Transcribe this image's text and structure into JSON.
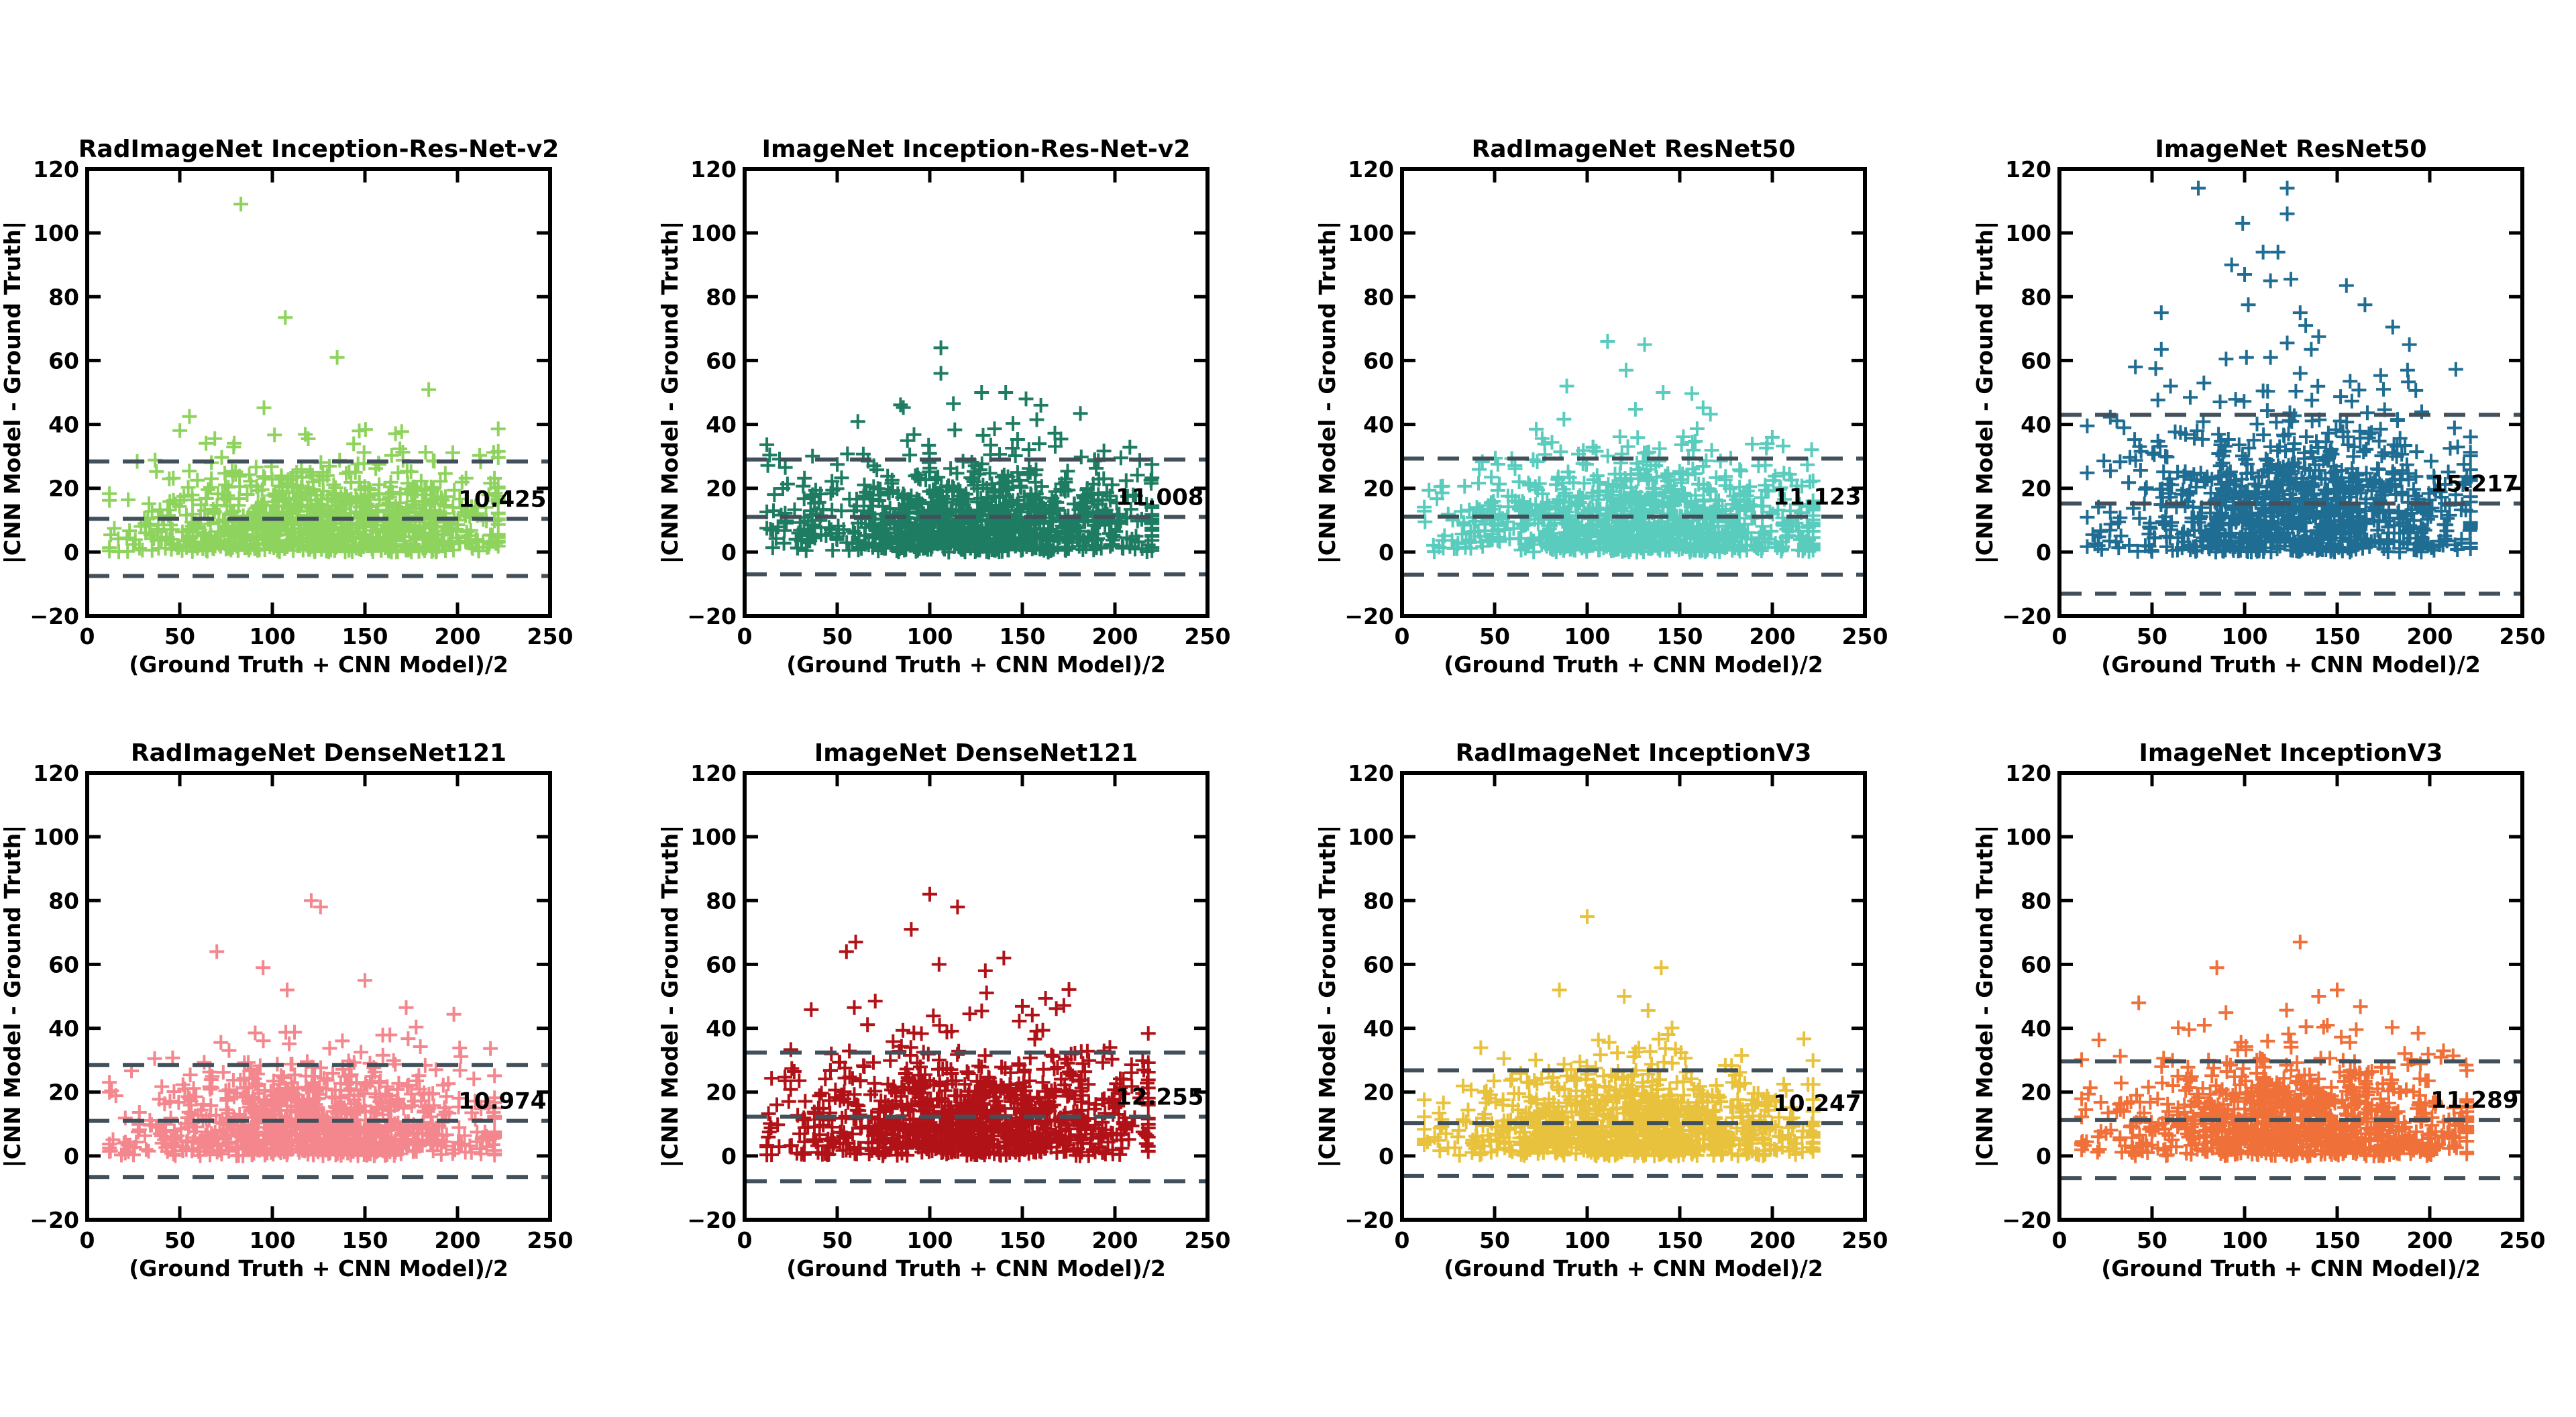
{
  "figure": {
    "background": "#ffffff",
    "xlabel": "(Ground Truth + CNN Model)/2",
    "ylabel": "|CNN Model - Ground Truth|",
    "x_ticks": [
      0,
      50,
      100,
      150,
      200,
      250
    ],
    "y_ticks": [
      -20,
      0,
      20,
      40,
      60,
      80,
      100,
      120
    ],
    "x_range": [
      0,
      250
    ],
    "y_range": [
      -20,
      120
    ],
    "spine_color": "#000000",
    "dashed_line_color": "#41505a",
    "text_color": "#000000",
    "marker": {
      "shape": "plus",
      "half_size": 11,
      "stroke_width": 4
    }
  },
  "chart_data": [
    {
      "type": "scatter",
      "title": "RadImageNet Inception-Res-Net-v2",
      "color": "#8fd35f",
      "mean": 10.425,
      "mean_label": "10.425",
      "loa_upper": 28.4,
      "loa_lower": -7.5,
      "n_points": 950,
      "seed": 11,
      "sigma": 12.3,
      "y_clamp": 52,
      "x_mean": 128,
      "x_sd": 47,
      "x_min": 12,
      "x_max": 222,
      "uniform_frac": 0.12,
      "outliers": [
        [
          83,
          109
        ],
        [
          107,
          73.5
        ],
        [
          135,
          61
        ]
      ]
    },
    {
      "type": "scatter",
      "title": "ImageNet Inception-Res-Net-v2",
      "color": "#1e7c62",
      "mean": 11.008,
      "mean_label": "11.008",
      "loa_upper": 29.0,
      "loa_lower": -7.0,
      "n_points": 950,
      "seed": 22,
      "sigma": 13.0,
      "y_clamp": 52,
      "x_mean": 128,
      "x_sd": 46,
      "x_min": 12,
      "x_max": 220,
      "uniform_frac": 0.12,
      "outliers": [
        [
          106,
          64
        ],
        [
          106,
          56
        ],
        [
          128,
          50
        ],
        [
          141,
          50
        ],
        [
          152,
          48
        ],
        [
          160,
          46
        ]
      ]
    },
    {
      "type": "scatter",
      "title": "RadImageNet ResNet50",
      "color": "#5accbe",
      "mean": 11.123,
      "mean_label": "11.123",
      "loa_upper": 29.3,
      "loa_lower": -7.1,
      "n_points": 950,
      "seed": 33,
      "sigma": 13.1,
      "y_clamp": 52,
      "x_mean": 128,
      "x_sd": 46,
      "x_min": 12,
      "x_max": 222,
      "uniform_frac": 0.12,
      "outliers": [
        [
          111,
          66
        ],
        [
          131,
          65
        ],
        [
          121,
          57
        ],
        [
          89,
          52
        ],
        [
          141,
          50
        ]
      ]
    },
    {
      "type": "scatter",
      "title": "ImageNet ResNet50",
      "color": "#1f6d92",
      "mean": 15.217,
      "mean_label": "15.217",
      "loa_upper": 43.0,
      "loa_lower": -13.0,
      "n_points": 950,
      "seed": 44,
      "sigma": 18.0,
      "y_clamp": 58,
      "x_mean": 130,
      "x_sd": 46,
      "x_min": 15,
      "x_max": 222,
      "uniform_frac": 0.12,
      "outliers": [
        [
          75,
          114
        ],
        [
          123,
          114
        ],
        [
          123,
          106
        ],
        [
          99,
          103
        ],
        [
          110,
          94
        ],
        [
          118,
          94
        ],
        [
          93,
          90
        ],
        [
          100,
          87
        ],
        [
          125,
          85.5
        ],
        [
          114,
          85
        ],
        [
          155,
          83.5
        ],
        [
          102,
          77.5
        ],
        [
          165,
          77.5
        ],
        [
          55,
          75
        ],
        [
          130,
          75
        ],
        [
          133,
          71
        ],
        [
          180,
          70.5
        ],
        [
          140,
          67.5
        ],
        [
          123,
          65.5
        ],
        [
          189,
          65
        ],
        [
          55,
          63.5
        ],
        [
          136,
          63.5
        ],
        [
          114,
          61
        ],
        [
          101,
          61
        ],
        [
          90,
          60.5
        ],
        [
          41,
          58
        ],
        [
          52,
          57.5
        ],
        [
          188,
          57
        ],
        [
          130,
          56
        ],
        [
          157,
          53.5
        ],
        [
          78,
          53
        ],
        [
          60,
          52
        ],
        [
          175,
          51
        ],
        [
          110,
          50.5
        ]
      ]
    },
    {
      "type": "scatter",
      "title": "RadImageNet DenseNet121",
      "color": "#f4878d",
      "mean": 10.974,
      "mean_label": "10.974",
      "loa_upper": 28.5,
      "loa_lower": -6.6,
      "n_points": 950,
      "seed": 55,
      "sigma": 13.0,
      "y_clamp": 50,
      "x_mean": 126,
      "x_sd": 46,
      "x_min": 12,
      "x_max": 220,
      "uniform_frac": 0.12,
      "outliers": [
        [
          121,
          80
        ],
        [
          126,
          78
        ],
        [
          70,
          64
        ],
        [
          95,
          59
        ],
        [
          150,
          55
        ],
        [
          108,
          52
        ]
      ]
    },
    {
      "type": "scatter",
      "title": "ImageNet DenseNet121",
      "color": "#b11217",
      "mean": 12.255,
      "mean_label": "12.255",
      "loa_upper": 32.4,
      "loa_lower": -7.9,
      "n_points": 950,
      "seed": 66,
      "sigma": 14.5,
      "y_clamp": 55,
      "x_mean": 126,
      "x_sd": 45,
      "x_min": 12,
      "x_max": 218,
      "uniform_frac": 0.12,
      "outliers": [
        [
          100,
          82
        ],
        [
          115,
          78
        ],
        [
          90,
          71
        ],
        [
          60,
          67
        ],
        [
          55,
          64
        ],
        [
          140,
          62
        ],
        [
          105,
          60
        ],
        [
          130,
          58
        ]
      ]
    },
    {
      "type": "scatter",
      "title": "RadImageNet InceptionV3",
      "color": "#e9c23d",
      "mean": 10.247,
      "mean_label": "10.247",
      "loa_upper": 26.8,
      "loa_lower": -6.3,
      "n_points": 950,
      "seed": 77,
      "sigma": 12.1,
      "y_clamp": 48,
      "x_mean": 126,
      "x_sd": 46,
      "x_min": 12,
      "x_max": 222,
      "uniform_frac": 0.12,
      "outliers": [
        [
          100,
          75
        ],
        [
          140,
          59
        ],
        [
          85,
          52
        ],
        [
          120,
          50
        ]
      ]
    },
    {
      "type": "scatter",
      "title": "ImageNet InceptionV3",
      "color": "#f0703a",
      "mean": 11.289,
      "mean_label": "11.289",
      "loa_upper": 29.6,
      "loa_lower": -7.0,
      "n_points": 950,
      "seed": 88,
      "sigma": 13.3,
      "y_clamp": 48,
      "x_mean": 128,
      "x_sd": 46,
      "x_min": 12,
      "x_max": 220,
      "uniform_frac": 0.12,
      "outliers": [
        [
          130,
          67
        ],
        [
          85,
          59
        ],
        [
          150,
          52
        ],
        [
          140,
          50
        ]
      ]
    }
  ]
}
